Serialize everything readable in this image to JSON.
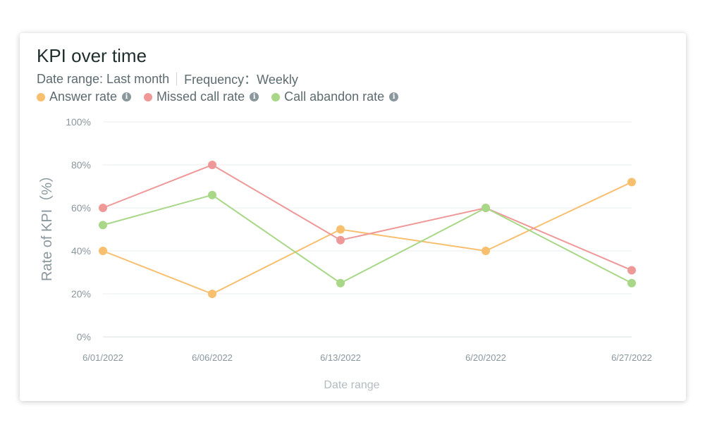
{
  "header": {
    "title": "KPI over time",
    "date_range": "Date range: Last month",
    "frequency": "Frequency：Weekly"
  },
  "legend": [
    {
      "label": "Answer rate",
      "color": "#f7bf6e",
      "icon": "info-icon"
    },
    {
      "label": "Missed call rate",
      "color": "#ef9898",
      "icon": "info-icon"
    },
    {
      "label": "Call abandon rate",
      "color": "#a8d787",
      "icon": "info-icon"
    }
  ],
  "chart_data": {
    "type": "line",
    "x": [
      "6/01/2022",
      "6/06/2022",
      "6/13/2022",
      "6/20/2022",
      "6/27/2022"
    ],
    "series": [
      {
        "name": "Answer rate",
        "color": "#f7bf6e",
        "values": [
          40,
          20,
          50,
          40,
          72
        ]
      },
      {
        "name": "Missed call rate",
        "color": "#ef9898",
        "values": [
          60,
          80,
          45,
          60,
          31
        ]
      },
      {
        "name": "Call abandon rate",
        "color": "#a8d787",
        "values": [
          52,
          66,
          25,
          60,
          25
        ]
      }
    ],
    "y_ticks": [
      "0%",
      "20%",
      "40%",
      "60%",
      "80%",
      "100%"
    ],
    "ylim": [
      0,
      100
    ],
    "xlabel": "Date range",
    "ylabel": "Rate of KPI（%）",
    "grid": true,
    "legend_position": "top-left"
  }
}
